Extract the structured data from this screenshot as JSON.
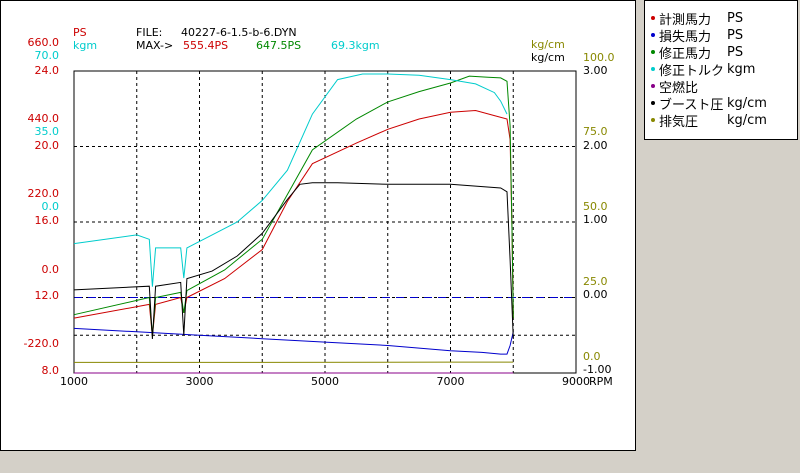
{
  "header": {
    "ps_label": "PS",
    "kgm_label": "kgm",
    "file_label": "FILE:",
    "file_name": "40227-6-1.5-b-6.DYN",
    "max_label": "MAX->",
    "max_values": [
      "555.4PS",
      "647.5PS",
      "69.3kgm"
    ],
    "right_unit_1": "kg/cm",
    "right_unit_2": "kg/cm"
  },
  "left_axis_labels": [
    {
      "text": "660.0",
      "color": "#cc0000"
    },
    {
      "text": "70.0",
      "color": "#00cccc"
    },
    {
      "text": "24.0",
      "color": "#cc0000"
    },
    {
      "text": "440.0",
      "color": "#cc0000"
    },
    {
      "text": "35.0",
      "color": "#00cccc"
    },
    {
      "text": "20.0",
      "color": "#cc0000"
    },
    {
      "text": "220.0",
      "color": "#cc0000"
    },
    {
      "text": "0.0",
      "color": "#00cccc"
    },
    {
      "text": "16.0",
      "color": "#cc0000"
    },
    {
      "text": "0.0",
      "color": "#cc0000"
    },
    {
      "text": "12.0",
      "color": "#cc0000"
    },
    {
      "text": "-220.0",
      "color": "#cc0000"
    },
    {
      "text": "8.0",
      "color": "#cc0000"
    }
  ],
  "right_axis_labels": [
    {
      "text": "100.0",
      "color": "#888800"
    },
    {
      "text": "3.00",
      "color": "#000000"
    },
    {
      "text": "75.0",
      "color": "#888800"
    },
    {
      "text": "2.00",
      "color": "#000000"
    },
    {
      "text": "50.0",
      "color": "#888800"
    },
    {
      "text": "1.00",
      "color": "#000000"
    },
    {
      "text": "25.0",
      "color": "#888800"
    },
    {
      "text": "0.00",
      "color": "#000000"
    },
    {
      "text": "0.0",
      "color": "#888800"
    },
    {
      "text": "-1.00",
      "color": "#000000"
    }
  ],
  "x_ticks": [
    "1000",
    "3000",
    "5000",
    "7000",
    "9000"
  ],
  "x_unit": "RPM",
  "legend": [
    {
      "label": "計測馬力",
      "unit": "PS",
      "color": "#cc0000"
    },
    {
      "label": "損失馬力",
      "unit": "PS",
      "color": "#0000cc"
    },
    {
      "label": "修正馬力",
      "unit": "PS",
      "color": "#008800"
    },
    {
      "label": "修正トルク",
      "unit": "kgm",
      "color": "#00cccc"
    },
    {
      "label": "空燃比",
      "unit": "",
      "color": "#880088"
    },
    {
      "label": "ブースト圧",
      "unit": "kg/cm",
      "color": "#000000"
    },
    {
      "label": "排気圧",
      "unit": "kg/cm",
      "color": "#888800"
    }
  ],
  "chart_data": {
    "type": "line",
    "xlabel": "RPM",
    "xlim": [
      1000,
      9000
    ],
    "x_ticks": [
      1000,
      3000,
      5000,
      7000,
      9000
    ],
    "grid": true,
    "legend_position": "right",
    "series": [
      {
        "name": "計測馬力",
        "unit": "PS",
        "color": "#cc0000",
        "ylim": [
          -220,
          660
        ],
        "x": [
          1000,
          2200,
          2250,
          2300,
          2700,
          2750,
          2800,
          3400,
          4000,
          4400,
          4800,
          5500,
          6000,
          6500,
          7000,
          7400,
          7700,
          7900,
          7950,
          7980,
          8000
        ],
        "y": [
          -60,
          -20,
          -112,
          -20,
          0,
          -45,
          0,
          55,
          140,
          280,
          390,
          450,
          490,
          520,
          540,
          545,
          530,
          520,
          460,
          200,
          -60
        ]
      },
      {
        "name": "損失馬力",
        "unit": "PS",
        "color": "#0000cc",
        "ylim": [
          -220,
          660
        ],
        "x": [
          1000,
          2000,
          3000,
          4000,
          5000,
          6000,
          7000,
          7500,
          7800,
          7900,
          7950,
          8000
        ],
        "y": [
          -90,
          -100,
          -110,
          -120,
          -130,
          -140,
          -155,
          -160,
          -165,
          -165,
          -140,
          -100
        ]
      },
      {
        "name": "修正馬力",
        "unit": "PS",
        "color": "#008800",
        "ylim": [
          -220,
          660
        ],
        "x": [
          1000,
          2200,
          2250,
          2300,
          2700,
          2750,
          2800,
          3400,
          4000,
          4400,
          4800,
          5500,
          6000,
          6500,
          7000,
          7300,
          7600,
          7800,
          7900,
          7950,
          7980,
          8000
        ],
        "y": [
          -50,
          0,
          -112,
          0,
          15,
          -45,
          20,
          80,
          170,
          300,
          430,
          520,
          570,
          600,
          625,
          645,
          642,
          640,
          630,
          500,
          200,
          -60
        ]
      },
      {
        "name": "修正トルク",
        "unit": "kgm",
        "color": "#00cccc",
        "ylim": [
          0,
          70
        ],
        "x": [
          1000,
          2000,
          2200,
          2250,
          2300,
          2700,
          2750,
          2800,
          3200,
          3600,
          4000,
          4400,
          4800,
          5200,
          5600,
          6000,
          6500,
          7000,
          7400,
          7700,
          7800,
          7900
        ],
        "y": [
          30,
          32,
          31,
          20,
          29,
          29,
          22,
          29,
          32,
          35,
          40,
          47,
          60,
          68,
          69.3,
          69.3,
          69,
          68,
          67,
          65,
          63,
          60
        ]
      },
      {
        "name": "ブースト圧",
        "unit": "kg/cm",
        "color": "#000000",
        "ylim": [
          -1,
          3
        ],
        "x": [
          1000,
          2200,
          2250,
          2300,
          2700,
          2750,
          2800,
          3200,
          3600,
          4000,
          4400,
          4600,
          4800,
          5200,
          6000,
          7000,
          7800,
          7900,
          7950,
          8000
        ],
        "y": [
          0.1,
          0.15,
          -0.55,
          0.15,
          0.2,
          -0.5,
          0.25,
          0.35,
          0.55,
          0.85,
          1.3,
          1.5,
          1.52,
          1.52,
          1.5,
          1.5,
          1.45,
          1.4,
          0.5,
          -0.55
        ]
      },
      {
        "name": "排気圧",
        "unit": "kg/cm",
        "color": "#888800",
        "ylim": [
          0,
          100
        ],
        "x": [
          1000,
          4000,
          7000,
          8000
        ],
        "y": [
          3.5,
          3.5,
          3.6,
          3.6
        ]
      },
      {
        "name": "空燃比",
        "unit": "",
        "color": "#880088",
        "ylim": [
          8,
          24
        ],
        "x": [
          1000,
          8000
        ],
        "y": [
          8,
          8
        ]
      }
    ],
    "reference_line": {
      "axis": "right",
      "value": 0.0,
      "style": "dashed",
      "color": "#0000cc"
    }
  }
}
